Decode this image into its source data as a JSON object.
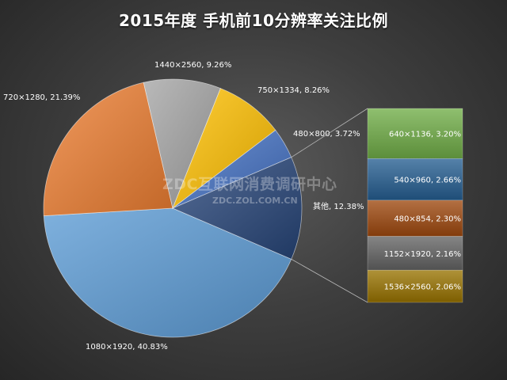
{
  "chart_data": {
    "type": "pie",
    "title": "2015年度 手机前10分辨率关注比例",
    "slices": [
      {
        "label": "1080×1920, 40.83%",
        "name": "1080×1920",
        "value": 40.83,
        "color": "#5b9bd5"
      },
      {
        "label": "720×1280, 21.39%",
        "name": "720×1280",
        "value": 21.39,
        "color": "#ed7d31"
      },
      {
        "label": "1440×2560, 9.26%",
        "name": "1440×2560",
        "value": 9.26,
        "color": "#a5a5a5"
      },
      {
        "label": "750×1334, 8.26%",
        "name": "750×1334",
        "value": 8.26,
        "color": "#ffc000"
      },
      {
        "label": "480×800, 3.72%",
        "name": "480×800",
        "value": 3.72,
        "color": "#4472c4"
      },
      {
        "label": "其他, 12.38%",
        "name": "其他",
        "value": 12.38,
        "color": "#264478"
      }
    ],
    "other_breakdown": [
      {
        "label": "640×1136, 3.20%",
        "name": "640×1136",
        "value": 3.2,
        "color": "#70ad47"
      },
      {
        "label": "540×960, 2.66%",
        "name": "540×960",
        "value": 2.66,
        "color": "#255e91"
      },
      {
        "label": "480×854, 2.30%",
        "name": "480×854",
        "value": 2.3,
        "color": "#9e480e"
      },
      {
        "label": "1152×1920, 2.16%",
        "name": "1152×1920",
        "value": 2.16,
        "color": "#636363"
      },
      {
        "label": "1536×2560, 2.06%",
        "name": "1536×2560",
        "value": 2.06,
        "color": "#997300"
      }
    ]
  },
  "watermark": {
    "text": "ZDC互联网消费调研中心",
    "url": "ZDC.ZOL.COM.CN"
  }
}
